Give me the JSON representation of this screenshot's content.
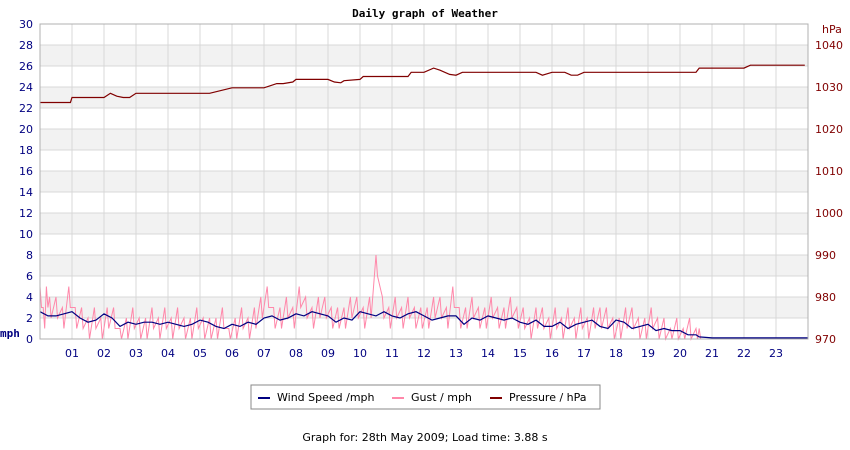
{
  "chart_data": {
    "type": "line",
    "title": "Daily graph of Weather",
    "x": {
      "tick_labels": [
        "01",
        "02",
        "03",
        "04",
        "05",
        "06",
        "07",
        "08",
        "09",
        "10",
        "11",
        "12",
        "13",
        "14",
        "15",
        "16",
        "17",
        "18",
        "19",
        "20",
        "21",
        "22",
        "23"
      ],
      "range": [
        0,
        24
      ],
      "unit": "hour of day"
    },
    "y_left": {
      "label": "mph",
      "range": [
        0,
        30
      ],
      "tick_labels": [
        "0",
        "2",
        "4",
        "6",
        "8",
        "10",
        "12",
        "14",
        "16",
        "18",
        "20",
        "22",
        "24",
        "26",
        "28",
        "30"
      ]
    },
    "y_right": {
      "label": "hPa",
      "range": [
        970,
        1045
      ],
      "tick_labels": [
        "970",
        "980",
        "990",
        "1000",
        "1010",
        "1020",
        "1030",
        "1040"
      ]
    },
    "grid": true,
    "colors": {
      "wind": "#000080",
      "gust": "#ff88aa",
      "pressure": "#800000",
      "left_axis": "#000080",
      "right_axis": "#800000",
      "band": "#f2f2f2",
      "grid": "#d8d8d8"
    },
    "series": [
      {
        "name": "Wind Speed /mph",
        "axis": "left",
        "color": "#000080",
        "x": [
          0,
          0.25,
          0.5,
          0.75,
          1,
          1.25,
          1.5,
          1.75,
          2,
          2.25,
          2.5,
          2.75,
          3,
          3.25,
          3.5,
          3.75,
          4,
          4.25,
          4.5,
          4.75,
          5,
          5.25,
          5.5,
          5.75,
          6,
          6.25,
          6.5,
          6.75,
          7,
          7.25,
          7.5,
          7.75,
          8,
          8.25,
          8.5,
          8.75,
          9,
          9.25,
          9.5,
          9.75,
          10,
          10.25,
          10.5,
          10.75,
          11,
          11.25,
          11.5,
          11.75,
          12,
          12.25,
          12.5,
          12.75,
          13,
          13.25,
          13.5,
          13.75,
          14,
          14.25,
          14.5,
          14.75,
          15,
          15.25,
          15.5,
          15.75,
          16,
          16.25,
          16.5,
          16.75,
          17,
          17.25,
          17.5,
          17.75,
          18,
          18.25,
          18.5,
          18.75,
          19,
          19.25,
          19.5,
          19.75,
          20,
          20.25,
          20.5,
          20.6,
          21,
          22,
          23,
          24
        ],
        "values": [
          2.6,
          2.2,
          2.2,
          2.4,
          2.6,
          2.0,
          1.6,
          1.8,
          2.4,
          2.0,
          1.2,
          1.6,
          1.4,
          1.6,
          1.6,
          1.4,
          1.6,
          1.4,
          1.2,
          1.4,
          1.8,
          1.6,
          1.2,
          1.0,
          1.4,
          1.2,
          1.6,
          1.4,
          2.0,
          2.2,
          1.8,
          2.0,
          2.4,
          2.2,
          2.6,
          2.4,
          2.2,
          1.6,
          2.0,
          1.8,
          2.6,
          2.4,
          2.2,
          2.6,
          2.2,
          2.0,
          2.4,
          2.6,
          2.2,
          1.8,
          2.0,
          2.2,
          2.2,
          1.4,
          2.0,
          1.8,
          2.2,
          2.0,
          1.8,
          2.0,
          1.6,
          1.4,
          1.8,
          1.2,
          1.2,
          1.6,
          1.0,
          1.4,
          1.6,
          1.8,
          1.2,
          1.0,
          1.8,
          1.6,
          1.0,
          1.2,
          1.4,
          0.8,
          1.0,
          0.8,
          0.8,
          0.4,
          0.4,
          0.2,
          0.1,
          0.1,
          0.1,
          0.1
        ]
      },
      {
        "name": "Gust / mph",
        "axis": "left",
        "color": "#ff88aa",
        "x": [
          0,
          0.1,
          0.2,
          0.3,
          0.5,
          0.7,
          0.9,
          1.1,
          1.3,
          1.5,
          1.7,
          1.9,
          2.1,
          2.3,
          2.5,
          2.7,
          2.9,
          3.1,
          3.3,
          3.5,
          3.7,
          3.9,
          4.1,
          4.3,
          4.5,
          4.7,
          4.9,
          5.1,
          5.3,
          5.5,
          5.7,
          5.9,
          6.1,
          6.3,
          6.5,
          6.7,
          6.9,
          7.1,
          7.3,
          7.5,
          7.7,
          7.9,
          8.1,
          8.3,
          8.5,
          8.7,
          8.9,
          9.1,
          9.3,
          9.5,
          9.7,
          9.9,
          10.1,
          10.3,
          10.5,
          10.7,
          10.9,
          11.1,
          11.3,
          11.5,
          11.7,
          11.9,
          12.1,
          12.3,
          12.5,
          12.7,
          12.9,
          13.1,
          13.3,
          13.5,
          13.7,
          13.9,
          14.1,
          14.3,
          14.5,
          14.7,
          14.9,
          15.1,
          15.3,
          15.5,
          15.7,
          15.9,
          16.1,
          16.3,
          16.5,
          16.7,
          16.9,
          17.1,
          17.3,
          17.5,
          17.7,
          17.9,
          18.1,
          18.3,
          18.5,
          18.7,
          18.9,
          19.1,
          19.3,
          19.5,
          19.7,
          19.9,
          20.1,
          20.3,
          20.5,
          20.6
        ],
        "values": [
          5,
          3,
          5,
          4,
          4,
          3,
          5,
          3,
          3,
          2,
          3,
          2,
          3,
          3,
          1,
          2,
          3,
          2,
          2,
          3,
          2,
          3,
          2,
          3,
          2,
          2,
          3,
          2,
          2,
          2,
          3,
          1,
          2,
          3,
          2,
          3,
          4,
          5,
          3,
          3,
          4,
          3,
          5,
          4,
          3,
          4,
          4,
          3,
          3,
          3,
          4,
          4,
          3,
          4,
          8,
          4,
          3,
          4,
          3,
          4,
          3,
          3,
          3,
          4,
          4,
          3,
          5,
          3,
          3,
          4,
          3,
          3,
          4,
          3,
          3,
          4,
          3,
          3,
          2,
          3,
          3,
          2,
          3,
          2,
          3,
          2,
          3,
          2,
          3,
          3,
          3,
          2,
          2,
          3,
          3,
          2,
          2,
          3,
          2,
          2,
          1,
          2,
          1,
          2,
          1,
          1
        ]
      },
      {
        "name": "Pressure / hPa",
        "axis": "right",
        "color": "#800000",
        "x": [
          0,
          0.95,
          1,
          2,
          2.2,
          2.4,
          2.6,
          2.8,
          3.0,
          4.0,
          5.0,
          5.3,
          6.0,
          6.6,
          7.0,
          7.4,
          7.6,
          7.9,
          8.0,
          9.0,
          9.2,
          9.4,
          9.5,
          10.0,
          10.1,
          11.0,
          11.5,
          11.6,
          12.0,
          12.3,
          12.5,
          12.8,
          13.0,
          13.2,
          13.4,
          14.0,
          15.0,
          15.5,
          15.7,
          16.0,
          16.4,
          16.6,
          16.8,
          17.0,
          17.5,
          18.0,
          19.0,
          20.0,
          20.5,
          20.6,
          21.0,
          21.5,
          22.0,
          22.2,
          23.0,
          23.9
        ],
        "values": [
          1026.3,
          1026.3,
          1027.5,
          1027.5,
          1028.5,
          1027.8,
          1027.5,
          1027.5,
          1028.5,
          1028.5,
          1028.5,
          1028.5,
          1029.8,
          1029.8,
          1029.8,
          1030.8,
          1030.8,
          1031.2,
          1031.8,
          1031.8,
          1031.2,
          1031,
          1031.5,
          1031.8,
          1032.5,
          1032.5,
          1032.5,
          1033.5,
          1033.5,
          1034.5,
          1034,
          1033,
          1032.8,
          1033.5,
          1033.5,
          1033.5,
          1033.5,
          1033.5,
          1032.8,
          1033.5,
          1033.5,
          1032.8,
          1032.8,
          1033.5,
          1033.5,
          1033.5,
          1033.5,
          1033.5,
          1033.5,
          1034.5,
          1034.5,
          1034.5,
          1034.5,
          1035.2,
          1035.2,
          1035.2
        ]
      }
    ],
    "legend": {
      "position": "bottom-center"
    }
  },
  "footer": "Graph for: 28th May 2009; Load time: 3.88 s"
}
